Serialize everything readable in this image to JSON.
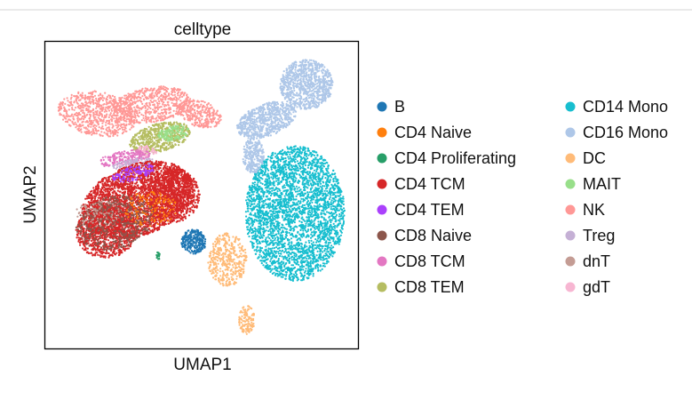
{
  "chart_data": {
    "type": "scatter",
    "title": "celltype",
    "xlabel": "UMAP1",
    "ylabel": "UMAP2",
    "grid": false,
    "legend_placement": "right",
    "series": [
      {
        "name": "B",
        "color": "#1f77b4"
      },
      {
        "name": "CD4 Naive",
        "color": "#ff7f0e"
      },
      {
        "name": "CD4 Proliferating",
        "color": "#279e68"
      },
      {
        "name": "CD4 TCM",
        "color": "#d62728"
      },
      {
        "name": "CD4 TEM",
        "color": "#aa40fc"
      },
      {
        "name": "CD8 Naive",
        "color": "#8c564b"
      },
      {
        "name": "CD8 TCM",
        "color": "#e377c2"
      },
      {
        "name": "CD8 TEM",
        "color": "#b5bd61"
      },
      {
        "name": "CD14 Mono",
        "color": "#17becf"
      },
      {
        "name": "CD16 Mono",
        "color": "#aec7e8"
      },
      {
        "name": "DC",
        "color": "#ffbb78"
      },
      {
        "name": "MAIT",
        "color": "#98df8a"
      },
      {
        "name": "NK",
        "color": "#ff9896"
      },
      {
        "name": "Treg",
        "color": "#c5b0d5"
      },
      {
        "name": "dnT",
        "color": "#c49c94"
      },
      {
        "name": "gdT",
        "color": "#f7b6d2"
      }
    ]
  }
}
